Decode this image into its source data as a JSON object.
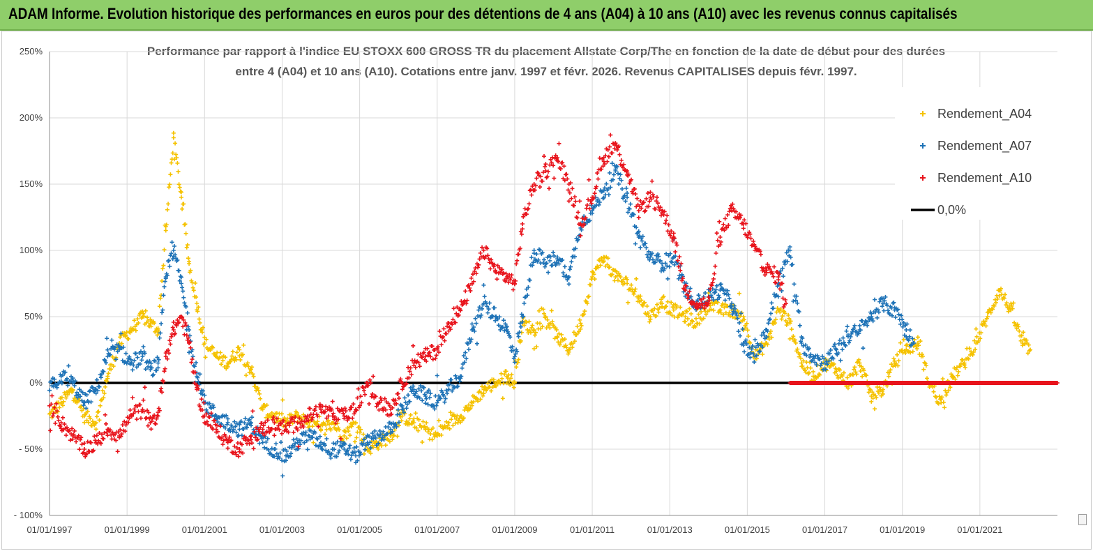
{
  "header": {
    "title": "ADAM Informe. Evolution historique des performances en euros pour des détentions de 4 ans (A04) à 10 ans (A10) avec les revenus connus capitalisés"
  },
  "chart_data": {
    "type": "scatter",
    "title_line1": "Performance par rapport à l'indice EU STOXX 600 GROSS TR  du placement Allstate Corp/The en fonction de la date de début pour des durées",
    "title_line2": "entre 4 (A04) et 10 ans (A10). Cotations entre janv. 1997 et févr. 2026. Revenus CAPITALISES depuis févr. 1997.",
    "xlim": [
      1997.0,
      2023.0
    ],
    "ylim": [
      -100,
      250
    ],
    "y_ticks": [
      250,
      200,
      150,
      100,
      50,
      0,
      -50,
      -100
    ],
    "y_tick_labels": [
      "250%",
      "200%",
      "150%",
      "100%",
      "50%",
      "0%",
      "- 50%",
      "- 100%"
    ],
    "x_ticks": [
      1997,
      1999,
      2001,
      2003,
      2005,
      2007,
      2009,
      2011,
      2013,
      2015,
      2017,
      2019,
      2021
    ],
    "x_tick_labels": [
      "01/01/1997",
      "01/01/1999",
      "01/01/2001",
      "01/01/2003",
      "01/01/2005",
      "01/01/2007",
      "01/01/2009",
      "01/01/2011",
      "01/01/2013",
      "01/01/2015",
      "01/01/2017",
      "01/01/2019",
      "01/01/2021"
    ],
    "legend_position": "top-right",
    "series": [
      {
        "name": "Rendement_A04",
        "color": "#f5c200",
        "x": [
          1997.0,
          1997.3,
          1997.6,
          1997.9,
          1998.2,
          1998.5,
          1998.8,
          1999.1,
          1999.4,
          1999.6,
          1999.8,
          2000.0,
          2000.2,
          2000.4,
          2000.6,
          2000.8,
          2001.0,
          2001.3,
          2001.6,
          2001.9,
          2002.2,
          2002.5,
          2002.8,
          2003.1,
          2003.4,
          2003.7,
          2004.0,
          2004.3,
          2004.6,
          2004.9,
          2005.2,
          2005.5,
          2005.8,
          2006.1,
          2006.4,
          2006.7,
          2007.0,
          2007.3,
          2007.6,
          2007.9,
          2008.2,
          2008.5,
          2008.8,
          2009.0,
          2009.2,
          2009.5,
          2009.8,
          2010.1,
          2010.4,
          2010.7,
          2011.0,
          2011.3,
          2011.6,
          2011.9,
          2012.2,
          2012.5,
          2012.8,
          2013.1,
          2013.4,
          2013.7,
          2014.0,
          2014.3,
          2014.6,
          2014.9,
          2015.2,
          2015.5,
          2015.8,
          2016.1,
          2016.4,
          2016.7,
          2017.0,
          2017.3,
          2017.6,
          2017.9,
          2018.2,
          2018.5,
          2018.8,
          2019.1,
          2019.4,
          2019.7,
          2020.0,
          2020.3,
          2020.6,
          2020.9,
          2021.2,
          2021.5,
          2021.8,
          2022.1,
          2022.3
        ],
        "values": [
          -25,
          -15,
          -5,
          -25,
          -30,
          5,
          30,
          40,
          50,
          45,
          40,
          115,
          185,
          140,
          90,
          60,
          30,
          20,
          15,
          25,
          10,
          -20,
          -25,
          -30,
          -25,
          -30,
          -35,
          -30,
          -40,
          -30,
          -50,
          -45,
          -40,
          -25,
          -30,
          -35,
          -40,
          -30,
          -25,
          -15,
          -5,
          0,
          5,
          0,
          45,
          40,
          50,
          35,
          25,
          45,
          80,
          95,
          80,
          75,
          65,
          50,
          60,
          55,
          50,
          45,
          60,
          55,
          55,
          50,
          20,
          30,
          55,
          45,
          15,
          5,
          15,
          10,
          0,
          15,
          -10,
          -5,
          15,
          25,
          30,
          0,
          -15,
          5,
          15,
          30,
          50,
          70,
          55,
          30,
          25
        ],
        "spread": 5
      },
      {
        "name": "Rendement_A07",
        "color": "#1f73b7",
        "x": [
          1997.0,
          1997.3,
          1997.6,
          1997.9,
          1998.2,
          1998.5,
          1998.8,
          1999.1,
          1999.4,
          1999.6,
          1999.8,
          2000.0,
          2000.2,
          2000.4,
          2000.6,
          2000.8,
          2001.0,
          2001.3,
          2001.6,
          2001.9,
          2002.2,
          2002.5,
          2002.8,
          2003.1,
          2003.4,
          2003.7,
          2004.0,
          2004.3,
          2004.6,
          2004.9,
          2005.2,
          2005.5,
          2005.8,
          2006.1,
          2006.4,
          2006.7,
          2007.0,
          2007.3,
          2007.6,
          2007.9,
          2008.2,
          2008.5,
          2008.8,
          2009.0,
          2009.2,
          2009.5,
          2009.8,
          2010.1,
          2010.4,
          2010.7,
          2011.0,
          2011.3,
          2011.6,
          2011.9,
          2012.2,
          2012.5,
          2012.8,
          2013.1,
          2013.4,
          2013.7,
          2014.0,
          2014.3,
          2014.6,
          2014.9,
          2015.2,
          2015.5,
          2015.8,
          2016.1,
          2016.4,
          2016.7,
          2017.0,
          2017.3,
          2017.6,
          2017.9,
          2018.2,
          2018.5,
          2018.8,
          2019.1,
          2019.3
        ],
        "values": [
          -5,
          5,
          0,
          -15,
          -5,
          20,
          25,
          15,
          20,
          10,
          15,
          80,
          100,
          75,
          40,
          5,
          -15,
          -25,
          -30,
          -35,
          -30,
          -45,
          -50,
          -55,
          -45,
          -40,
          -45,
          -50,
          -50,
          -55,
          -45,
          -40,
          -35,
          -20,
          -5,
          -10,
          -15,
          -5,
          5,
          40,
          60,
          50,
          40,
          20,
          50,
          100,
          90,
          95,
          80,
          120,
          130,
          145,
          160,
          140,
          110,
          95,
          90,
          95,
          70,
          60,
          65,
          70,
          60,
          30,
          20,
          40,
          75,
          100,
          30,
          20,
          15,
          25,
          35,
          40,
          50,
          60,
          55,
          40,
          30
        ],
        "spread": 6
      },
      {
        "name": "Rendement_A10",
        "color": "#e8141c",
        "x": [
          1997.0,
          1997.3,
          1997.6,
          1997.9,
          1998.2,
          1998.5,
          1998.8,
          1999.1,
          1999.4,
          1999.6,
          1999.8,
          2000.0,
          2000.2,
          2000.4,
          2000.6,
          2000.8,
          2001.0,
          2001.3,
          2001.6,
          2001.9,
          2002.2,
          2002.5,
          2002.8,
          2003.1,
          2003.4,
          2003.7,
          2004.0,
          2004.3,
          2004.6,
          2004.9,
          2005.2,
          2005.5,
          2005.8,
          2006.1,
          2006.4,
          2006.7,
          2007.0,
          2007.3,
          2007.6,
          2007.9,
          2008.2,
          2008.5,
          2008.8,
          2009.0,
          2009.2,
          2009.5,
          2009.8,
          2010.1,
          2010.4,
          2010.7,
          2011.0,
          2011.3,
          2011.6,
          2011.9,
          2012.2,
          2012.5,
          2012.8,
          2013.1,
          2013.4,
          2013.7,
          2014.0,
          2014.3,
          2014.6,
          2014.9,
          2015.2,
          2015.5,
          2015.8,
          2016.0
        ],
        "values": [
          -20,
          -30,
          -40,
          -50,
          -45,
          -35,
          -40,
          -25,
          -20,
          -30,
          -25,
          20,
          40,
          50,
          30,
          -5,
          -25,
          -35,
          -45,
          -50,
          -40,
          -35,
          -30,
          -35,
          -30,
          -25,
          -20,
          -25,
          -25,
          -20,
          0,
          -15,
          -20,
          0,
          15,
          20,
          25,
          45,
          55,
          75,
          100,
          85,
          80,
          75,
          120,
          150,
          160,
          170,
          150,
          120,
          140,
          170,
          180,
          160,
          130,
          140,
          130,
          110,
          70,
          60,
          60,
          110,
          130,
          120,
          100,
          85,
          80,
          60
        ],
        "spread": 6
      },
      {
        "name": "0,0%",
        "color": "#000000",
        "type": "line",
        "x": [
          1997.0,
          2023.0
        ],
        "values": [
          0,
          0
        ]
      }
    ],
    "red_zero_band": {
      "x_start": 2016.1,
      "x_end": 2023.0,
      "value": 0
    }
  }
}
